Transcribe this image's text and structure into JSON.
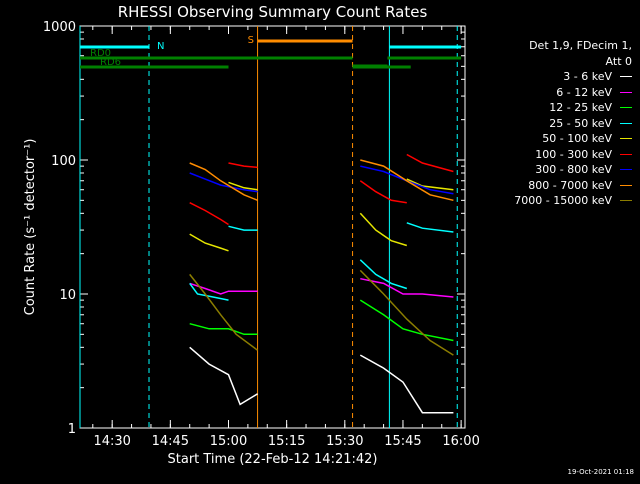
{
  "chart_data": {
    "type": "line",
    "title": "RHESSI Observing Summary Count Rates",
    "xlabel": "Start Time (22-Feb-12 14:21:42)",
    "ylabel": "Count Rate (s⁻¹ detector⁻¹)",
    "y_scale": "log",
    "ylim": [
      1,
      1000
    ],
    "xlim": [
      "14:21:42",
      "16:01:00"
    ],
    "x_ticks": [
      "14:30",
      "14:45",
      "15:00",
      "15:15",
      "15:30",
      "15:45",
      "16:00"
    ],
    "y_ticks": [
      "1",
      "10",
      "100",
      "1000"
    ],
    "legend": {
      "position": "right",
      "header": [
        "Det 1,9, FDecim 1,",
        "Att 0"
      ],
      "entries": [
        {
          "label": "3 - 6 keV",
          "color": "#ffffff"
        },
        {
          "label": "6 - 12 keV",
          "color": "#ff00ff"
        },
        {
          "label": "12 - 25 keV",
          "color": "#00ff00"
        },
        {
          "label": "25 - 50 keV",
          "color": "#00ffff"
        },
        {
          "label": "50 - 100 keV",
          "color": "#e6e600"
        },
        {
          "label": "100 - 300 keV",
          "color": "#ff0000"
        },
        {
          "label": "300 - 800 keV",
          "color": "#0000ff"
        },
        {
          "label": "800 - 7000 keV",
          "color": "#ff8c00"
        },
        {
          "label": "7000 - 15000 keV",
          "color": "#8b7d00"
        }
      ]
    },
    "flag_bars": [
      {
        "label": "N",
        "color": "#00ffff",
        "segments": [
          [
            "14:21:42",
            "14:39:30"
          ],
          [
            "15:41:30",
            "16:00:00"
          ]
        ]
      },
      {
        "label": "S",
        "color": "#ff8c00",
        "segments": [
          [
            "15:07:30",
            "15:32:00"
          ]
        ]
      },
      {
        "label": "RD0",
        "color": "#008000",
        "segments": [
          [
            "14:21:42",
            "15:32:00"
          ],
          [
            "15:32:00",
            "15:41:00"
          ],
          [
            "15:41:00",
            "16:00:00"
          ]
        ]
      },
      {
        "label": "RD6",
        "color": "#008000",
        "segments": [
          [
            "14:21:42",
            "15:00:00"
          ],
          [
            "15:32:00",
            "15:47:00"
          ]
        ]
      }
    ],
    "vertical_markers": [
      {
        "x": "14:21:42",
        "color": "#00ffff",
        "style": "solid"
      },
      {
        "x": "14:39:30",
        "color": "#00ffff",
        "style": "dashed"
      },
      {
        "x": "15:07:30",
        "color": "#ff8c00",
        "style": "solid"
      },
      {
        "x": "15:32:00",
        "color": "#ff8c00",
        "style": "dashed"
      },
      {
        "x": "15:41:30",
        "color": "#00ffff",
        "style": "solid"
      },
      {
        "x": "15:59:00",
        "color": "#00ffff",
        "style": "dashed"
      }
    ],
    "series": [
      {
        "name": "3 - 6 keV",
        "color": "#ffffff",
        "segments": [
          {
            "x": [
              "14:50:00",
              "14:55:00",
              "15:00:00",
              "15:03:00",
              "15:07:30"
            ],
            "y": [
              4.0,
              3.0,
              2.5,
              1.5,
              1.8
            ]
          },
          {
            "x": [
              "15:34:00",
              "15:40:00",
              "15:45:00",
              "15:50:00",
              "15:58:00"
            ],
            "y": [
              3.5,
              2.8,
              2.2,
              1.3,
              1.3
            ]
          }
        ]
      },
      {
        "name": "6 - 12 keV",
        "color": "#ff00ff",
        "segments": [
          {
            "x": [
              "14:50:00",
              "14:54:00",
              "14:58:00",
              "15:00:00",
              "15:04:00",
              "15:07:30"
            ],
            "y": [
              12,
              11,
              10,
              10.5,
              10.5,
              10.5
            ]
          },
          {
            "x": [
              "15:34:00",
              "15:40:00",
              "15:45:00",
              "15:50:00",
              "15:58:00"
            ],
            "y": [
              13,
              12,
              10,
              10,
              9.5
            ]
          }
        ]
      },
      {
        "name": "12 - 25 keV",
        "color": "#00ff00",
        "segments": [
          {
            "x": [
              "14:50:00",
              "14:55:00",
              "15:00:00",
              "15:04:00",
              "15:07:30"
            ],
            "y": [
              6,
              5.5,
              5.5,
              5,
              5
            ]
          },
          {
            "x": [
              "15:34:00",
              "15:40:00",
              "15:45:00",
              "15:50:00",
              "15:58:00"
            ],
            "y": [
              9,
              7,
              5.5,
              5,
              4.5
            ]
          }
        ]
      },
      {
        "name": "25 - 50 keV",
        "color": "#00ffff",
        "segments": [
          {
            "x": [
              "14:50:00",
              "14:52:00",
              "14:56:00",
              "15:00:00"
            ],
            "y": [
              12,
              10,
              9.5,
              9
            ]
          },
          {
            "x": [
              "15:00:00",
              "15:04:00",
              "15:07:30"
            ],
            "y": [
              32,
              30,
              30
            ]
          },
          {
            "x": [
              "15:34:00",
              "15:38:00",
              "15:42:00",
              "15:46:00"
            ],
            "y": [
              18,
              14,
              12,
              11
            ]
          },
          {
            "x": [
              "15:46:00",
              "15:50:00",
              "15:58:00"
            ],
            "y": [
              34,
              31,
              29
            ]
          }
        ]
      },
      {
        "name": "50 - 100 keV",
        "color": "#e6e600",
        "segments": [
          {
            "x": [
              "14:50:00",
              "14:54:00",
              "14:58:00",
              "15:00:00"
            ],
            "y": [
              28,
              24,
              22,
              21
            ]
          },
          {
            "x": [
              "15:00:00",
              "15:04:00",
              "15:07:30"
            ],
            "y": [
              68,
              62,
              60
            ]
          },
          {
            "x": [
              "15:34:00",
              "15:38:00",
              "15:42:00",
              "15:46:00"
            ],
            "y": [
              40,
              30,
              25,
              23
            ]
          },
          {
            "x": [
              "15:46:00",
              "15:50:00",
              "15:58:00"
            ],
            "y": [
              72,
              64,
              60
            ]
          }
        ]
      },
      {
        "name": "100 - 300 keV",
        "color": "#ff0000",
        "segments": [
          {
            "x": [
              "14:50:00",
              "14:54:00",
              "14:58:00",
              "15:00:00"
            ],
            "y": [
              48,
              42,
              36,
              33
            ]
          },
          {
            "x": [
              "15:00:00",
              "15:04:00",
              "15:07:30"
            ],
            "y": [
              95,
              90,
              88
            ]
          },
          {
            "x": [
              "15:34:00",
              "15:38:00",
              "15:42:00",
              "15:46:00"
            ],
            "y": [
              70,
              58,
              50,
              48
            ]
          },
          {
            "x": [
              "15:46:00",
              "15:50:00",
              "15:58:00"
            ],
            "y": [
              110,
              95,
              82
            ]
          }
        ]
      },
      {
        "name": "300 - 800 keV",
        "color": "#0000ff",
        "segments": [
          {
            "x": [
              "14:50:00",
              "14:54:00",
              "14:58:00",
              "15:04:00",
              "15:07:30"
            ],
            "y": [
              80,
              72,
              65,
              60,
              58
            ]
          },
          {
            "x": [
              "15:34:00",
              "15:40:00",
              "15:46:00",
              "15:52:00",
              "15:58:00"
            ],
            "y": [
              90,
              82,
              70,
              60,
              56
            ]
          }
        ]
      },
      {
        "name": "800 - 7000 keV",
        "color": "#ff8c00",
        "segments": [
          {
            "x": [
              "14:50:00",
              "14:54:00",
              "14:58:00",
              "15:04:00",
              "15:07:30"
            ],
            "y": [
              95,
              85,
              70,
              55,
              50
            ]
          },
          {
            "x": [
              "15:34:00",
              "15:40:00",
              "15:46:00",
              "15:52:00",
              "15:58:00"
            ],
            "y": [
              100,
              90,
              70,
              55,
              50
            ]
          }
        ]
      },
      {
        "name": "7000 - 15000 keV",
        "color": "#8b7d00",
        "segments": [
          {
            "x": [
              "14:50:00",
              "14:54:00",
              "14:58:00",
              "15:02:00",
              "15:07:30"
            ],
            "y": [
              14,
              10,
              7,
              5,
              3.8
            ]
          },
          {
            "x": [
              "15:34:00",
              "15:40:00",
              "15:46:00",
              "15:52:00",
              "15:58:00"
            ],
            "y": [
              15,
              10,
              6.5,
              4.5,
              3.5
            ]
          }
        ]
      }
    ]
  },
  "footer": {
    "timestamp": "19-Oct-2021 01:18"
  }
}
